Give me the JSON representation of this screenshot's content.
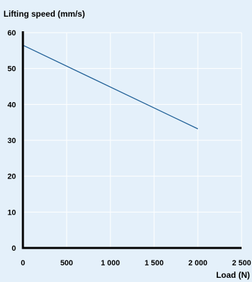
{
  "chart_data": {
    "type": "line",
    "title": "",
    "ylabel": "Lifting speed (mm/s)",
    "xlabel": "Load (N)",
    "xlim": [
      0,
      2500
    ],
    "ylim": [
      0,
      60
    ],
    "grid": true,
    "x_ticks": [
      0,
      500,
      1000,
      1500,
      2000,
      2500
    ],
    "x_tick_labels": [
      "0",
      "500",
      "1 000",
      "1 500",
      "2 000",
      "2 500"
    ],
    "y_ticks": [
      0,
      10,
      20,
      30,
      40,
      50,
      60
    ],
    "y_tick_labels": [
      "0",
      "10",
      "20",
      "30",
      "40",
      "50",
      "60"
    ],
    "series": [
      {
        "x": [
          0,
          2000
        ],
        "y": [
          56.5,
          33.2
        ]
      }
    ],
    "colors": {
      "background": "#e4f0fa",
      "grid": "#ffffff",
      "line": "#1f5f96",
      "axis": "#000000"
    }
  }
}
